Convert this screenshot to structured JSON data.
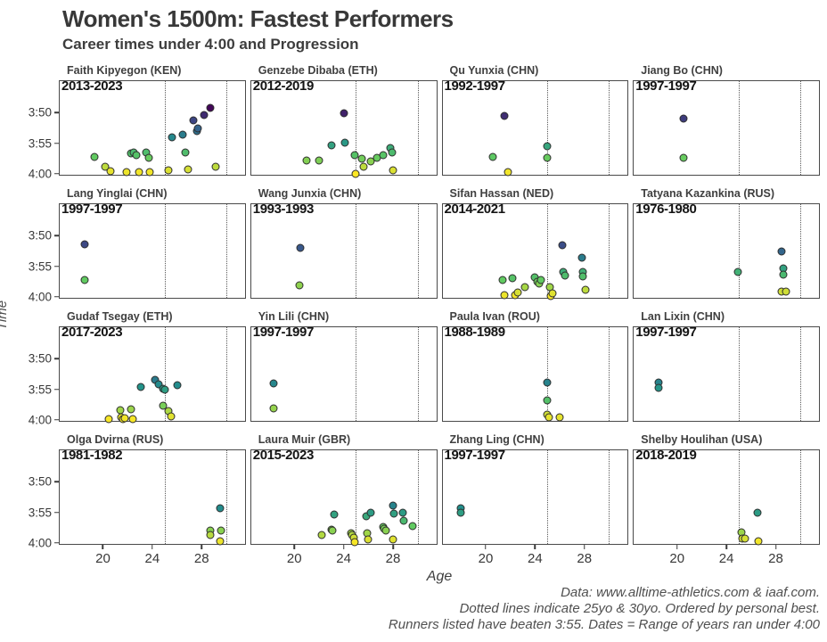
{
  "header": {
    "title": "Women's 1500m: Fastest Performers",
    "subtitle": "Career times under 4:00 and Progression"
  },
  "caption": {
    "lines": [
      "Data: www.alltime-athletics.com & iaaf.com.",
      "Dotted lines indicate 25yo & 30yo. Ordered by personal best.",
      "Runners listed have beaten 3:55. Dates = Range of years ran under 4:00"
    ]
  },
  "colors": {
    "viridis_stops": [
      "#440154",
      "#3b528b",
      "#21918c",
      "#5ec962",
      "#fde725"
    ],
    "color_domain_seconds": [
      229,
      240
    ],
    "point_stroke": "#2e2e2e",
    "panel_border": "#4a4a4a",
    "dotted_line": "#5a5a5a",
    "title_text": "#383838",
    "axis_text": "#383838",
    "caption_text": "#4f4f4f"
  },
  "chart_data": {
    "type": "scatter",
    "title": "Women's 1500m: Fastest Performers",
    "subtitle": "Career times under 4:00 and Progression",
    "xlabel": "Age",
    "ylabel": "Time",
    "facet_layout": {
      "rows": 4,
      "cols": 4
    },
    "axes": {
      "x_domain": [
        16.5,
        31.5
      ],
      "y_domain_seconds": [
        224.8,
        240.2
      ],
      "y_inverted_note": "faster times plotted higher; values are seconds (230 = 3:50)",
      "x_ticks": [
        "20",
        "24",
        "28"
      ],
      "x_tick_values": [
        20,
        24,
        28
      ],
      "y_ticks": [
        "3:50",
        "3:55",
        "4:00"
      ],
      "y_tick_values": [
        230,
        235,
        240
      ],
      "vlines": [
        25,
        30
      ],
      "grid": false,
      "legend": "none"
    },
    "facets": [
      {
        "title": "Faith Kipyegon (KEN)",
        "years": "2013-2023",
        "points": [
          [
            19.3,
            237.3
          ],
          [
            20.2,
            238.9
          ],
          [
            20.6,
            239.6
          ],
          [
            21.9,
            239.7
          ],
          [
            22.3,
            236.7
          ],
          [
            22.5,
            236.5
          ],
          [
            22.7,
            236.9
          ],
          [
            22.9,
            239.8
          ],
          [
            23.5,
            236.6
          ],
          [
            23.7,
            237.4
          ],
          [
            23.8,
            239.8
          ],
          [
            25.3,
            239.4
          ],
          [
            25.6,
            234.1
          ],
          [
            26.5,
            233.6
          ],
          [
            26.7,
            236.6
          ],
          [
            26.9,
            239.3
          ],
          [
            27.3,
            231.3
          ],
          [
            27.6,
            233.0
          ],
          [
            27.7,
            232.5
          ],
          [
            28.2,
            230.4
          ],
          [
            28.7,
            229.2
          ],
          [
            29.1,
            238.9
          ]
        ]
      },
      {
        "title": "Genzebe Dibaba (ETH)",
        "years": "2012-2019",
        "points": [
          [
            21.0,
            237.9
          ],
          [
            22.0,
            237.8
          ],
          [
            23.0,
            235.3
          ],
          [
            24.0,
            230.1
          ],
          [
            24.1,
            234.9
          ],
          [
            24.9,
            236.9
          ],
          [
            25.0,
            240.0
          ],
          [
            25.5,
            237.6
          ],
          [
            25.6,
            238.9
          ],
          [
            26.2,
            238.0
          ],
          [
            26.7,
            237.4
          ],
          [
            27.2,
            237.0
          ],
          [
            27.8,
            235.8
          ],
          [
            27.9,
            236.5
          ],
          [
            28.0,
            239.4
          ]
        ]
      },
      {
        "title": "Qu Yunxia (CHN)",
        "years": "1992-1997",
        "points": [
          [
            20.6,
            237.2
          ],
          [
            21.5,
            230.5
          ],
          [
            21.8,
            239.8
          ],
          [
            25.0,
            235.5
          ],
          [
            25.0,
            237.4
          ]
        ]
      },
      {
        "title": "Jiang Bo (CHN)",
        "years": "1997-1997",
        "points": [
          [
            20.5,
            231.0
          ],
          [
            20.5,
            237.4
          ]
        ]
      },
      {
        "title": "Lang Yinglai (CHN)",
        "years": "1997-1997",
        "points": [
          [
            18.5,
            231.4
          ],
          [
            18.5,
            237.3
          ]
        ]
      },
      {
        "title": "Wang Junxia (CHN)",
        "years": "1993-1993",
        "points": [
          [
            20.5,
            232.0
          ],
          [
            20.4,
            238.1
          ]
        ]
      },
      {
        "title": "Sifan Hassan (NED)",
        "years": "2014-2021",
        "points": [
          [
            21.4,
            237.3
          ],
          [
            21.5,
            239.7
          ],
          [
            22.2,
            236.9
          ],
          [
            22.4,
            239.8
          ],
          [
            22.6,
            239.3
          ],
          [
            23.2,
            238.5
          ],
          [
            24.0,
            236.8
          ],
          [
            24.2,
            237.5
          ],
          [
            24.3,
            237.9
          ],
          [
            24.5,
            237.3
          ],
          [
            25.2,
            238.4
          ],
          [
            25.3,
            239.9
          ],
          [
            25.4,
            239.5
          ],
          [
            26.2,
            231.6
          ],
          [
            26.3,
            235.9
          ],
          [
            26.4,
            236.6
          ],
          [
            27.8,
            233.6
          ],
          [
            27.9,
            236.0
          ],
          [
            27.9,
            236.7
          ],
          [
            28.1,
            238.9
          ]
        ]
      },
      {
        "title": "Tatyana Kazankina (RUS)",
        "years": "1976-1980",
        "points": [
          [
            24.9,
            236.0
          ],
          [
            28.5,
            232.6
          ],
          [
            28.6,
            235.3
          ],
          [
            28.6,
            236.4
          ],
          [
            28.5,
            239.2
          ],
          [
            28.8,
            239.2
          ]
        ]
      },
      {
        "title": "Gudaf Tsegay (ETH)",
        "years": "2017-2023",
        "points": [
          [
            20.5,
            239.9
          ],
          [
            21.4,
            238.4
          ],
          [
            21.5,
            239.6
          ],
          [
            21.6,
            239.9
          ],
          [
            21.8,
            239.8
          ],
          [
            22.3,
            238.3
          ],
          [
            22.4,
            239.9
          ],
          [
            23.1,
            234.6
          ],
          [
            24.2,
            233.5
          ],
          [
            24.5,
            234.2
          ],
          [
            24.9,
            234.9
          ],
          [
            25.0,
            235.1
          ],
          [
            24.9,
            237.7
          ],
          [
            25.3,
            238.6
          ],
          [
            25.5,
            239.5
          ],
          [
            26.0,
            234.3
          ]
        ]
      },
      {
        "title": "Yin Lili (CHN)",
        "years": "1997-1997",
        "points": [
          [
            18.3,
            234.0
          ],
          [
            18.3,
            238.2
          ]
        ]
      },
      {
        "title": "Paula Ivan (ROU)",
        "years": "1988-1989",
        "points": [
          [
            25.0,
            233.9
          ],
          [
            25.0,
            236.8
          ],
          [
            25.0,
            239.2
          ],
          [
            25.1,
            239.6
          ],
          [
            26.0,
            239.6
          ]
        ]
      },
      {
        "title": "Lan Lixin (CHN)",
        "years": "1997-1997",
        "points": [
          [
            18.5,
            233.9
          ],
          [
            18.5,
            234.7
          ]
        ]
      },
      {
        "title": "Olga Dvirna (RUS)",
        "years": "1981-1982",
        "points": [
          [
            28.7,
            238.0
          ],
          [
            28.7,
            238.8
          ],
          [
            29.5,
            234.3
          ],
          [
            29.6,
            238.0
          ],
          [
            29.5,
            239.7
          ]
        ]
      },
      {
        "title": "Laura Muir (GBR)",
        "years": "2015-2023",
        "points": [
          [
            22.2,
            238.7
          ],
          [
            23.0,
            237.8
          ],
          [
            23.1,
            238.0
          ],
          [
            23.2,
            235.3
          ],
          [
            24.6,
            238.4
          ],
          [
            24.7,
            238.7
          ],
          [
            24.8,
            239.2
          ],
          [
            24.9,
            239.9
          ],
          [
            25.8,
            235.6
          ],
          [
            25.9,
            238.4
          ],
          [
            26.0,
            239.4
          ],
          [
            26.2,
            235.0
          ],
          [
            27.2,
            237.4
          ],
          [
            27.3,
            237.7
          ],
          [
            27.4,
            238.0
          ],
          [
            28.0,
            233.9
          ],
          [
            28.1,
            235.2
          ],
          [
            28.0,
            239.5
          ],
          [
            28.8,
            235.0
          ],
          [
            28.9,
            236.4
          ],
          [
            29.6,
            237.3
          ]
        ]
      },
      {
        "title": "Zhang Ling (CHN)",
        "years": "1997-1997",
        "points": [
          [
            18.0,
            234.4
          ],
          [
            18.0,
            235.1
          ]
        ]
      },
      {
        "title": "Shelby Houlihan (USA)",
        "years": "2018-2019",
        "points": [
          [
            25.2,
            238.3
          ],
          [
            25.3,
            239.3
          ],
          [
            25.5,
            239.3
          ],
          [
            26.5,
            235.0
          ],
          [
            26.6,
            239.8
          ]
        ]
      }
    ]
  }
}
